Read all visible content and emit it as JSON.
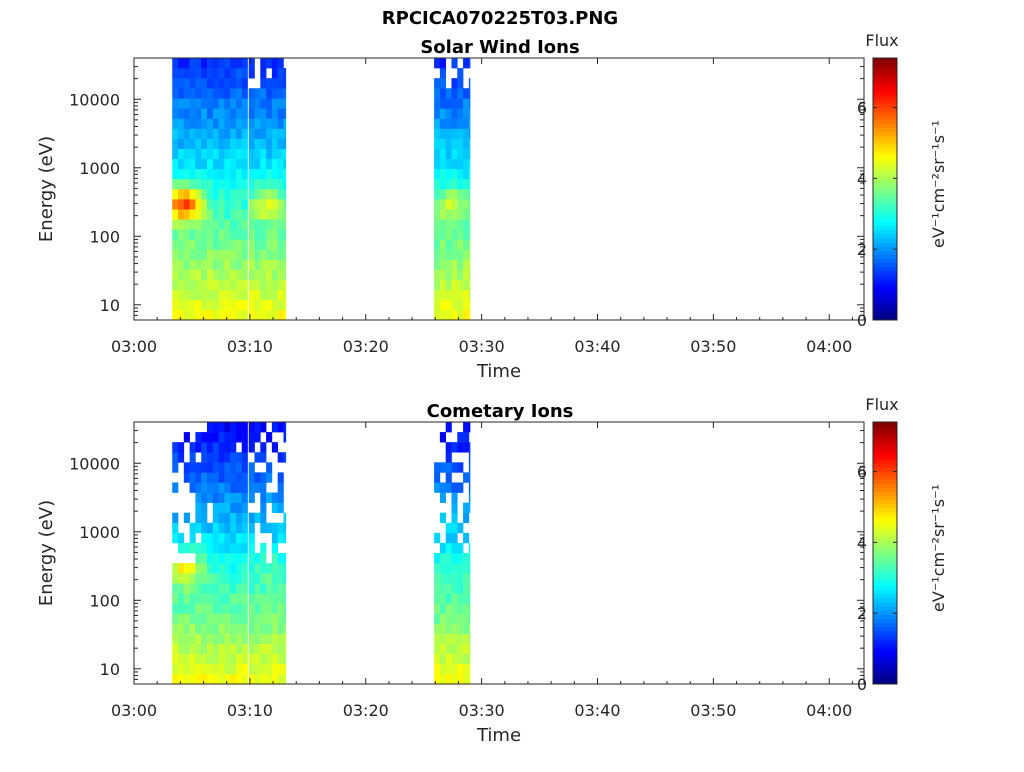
{
  "figure_title": "RPCICA070225T03.PNG",
  "chart_data": [
    {
      "type": "heatmap",
      "title": "Solar Wind Ions",
      "xlabel": "Time",
      "ylabel": "Energy (eV)",
      "x_ticks": [
        "03:00",
        "03:10",
        "03:20",
        "03:30",
        "03:40",
        "03:50",
        "04:00"
      ],
      "x_range_min": [
        0,
        63
      ],
      "y_scale": "log",
      "y_ticks": [
        "10",
        "100",
        "1000",
        "10000"
      ],
      "y_range": [
        6,
        40000
      ],
      "colorbar": {
        "title": "Flux",
        "label": "eV⁻¹cm⁻²sr⁻¹s⁻¹",
        "range": [
          0,
          7.4
        ],
        "ticks": [
          "0",
          "2",
          "4",
          "6"
        ],
        "colormap": "jet"
      },
      "data_blocks": [
        {
          "t_start_min": 3.3,
          "t_end_min": 9.8,
          "peak_energy_eV": 300,
          "peak_value": 6.2
        },
        {
          "t_start_min": 9.9,
          "t_end_min": 13.1,
          "peak_energy_eV": 300,
          "peak_value": 4.5
        },
        {
          "t_start_min": 25.9,
          "t_end_min": 29.0,
          "peak_energy_eV": 300,
          "peak_value": 4.3
        }
      ],
      "low_energy_level": 4.6,
      "high_energy_level": 1.5
    },
    {
      "type": "heatmap",
      "title": "Cometary Ions",
      "xlabel": "Time",
      "ylabel": "Energy (eV)",
      "x_ticks": [
        "03:00",
        "03:10",
        "03:20",
        "03:30",
        "03:40",
        "03:50",
        "04:00"
      ],
      "x_range_min": [
        0,
        63
      ],
      "y_scale": "log",
      "y_ticks": [
        "10",
        "100",
        "1000",
        "10000"
      ],
      "y_range": [
        6,
        40000
      ],
      "colorbar": {
        "title": "Flux",
        "label": "eV⁻¹cm⁻²sr⁻¹s⁻¹",
        "range": [
          0,
          7.4
        ],
        "ticks": [
          "0",
          "2",
          "4",
          "6"
        ],
        "colormap": "jet"
      },
      "data_blocks": [
        {
          "t_start_min": 3.3,
          "t_end_min": 9.8,
          "peak_energy_eV": 300,
          "peak_value": 5.0
        },
        {
          "t_start_min": 9.9,
          "t_end_min": 13.1,
          "peak_energy_eV": 300,
          "peak_value": 3.6
        },
        {
          "t_start_min": 25.9,
          "t_end_min": 29.0,
          "peak_energy_eV": 300,
          "peak_value": 3.4
        }
      ],
      "low_energy_level": 4.6,
      "high_energy_level": 1.2
    }
  ]
}
